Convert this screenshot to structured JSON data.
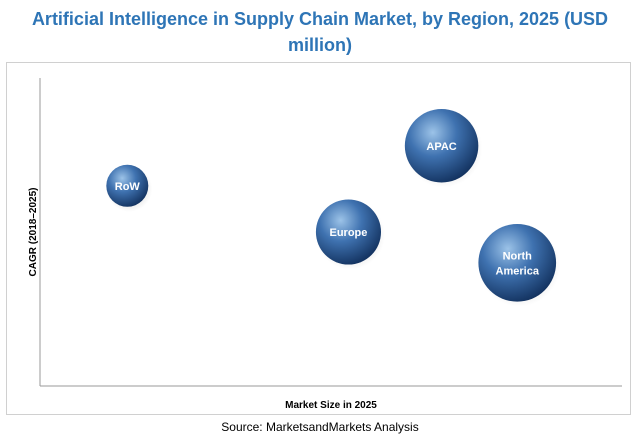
{
  "chart_data": {
    "type": "scatter",
    "title": "Artificial Intelligence in Supply Chain Market, by Region, 2025 (USD million)",
    "xlabel": "Market Size in 2025",
    "ylabel": "CAGR (2018–2025)",
    "grid": false,
    "series": [
      {
        "points": [
          {
            "label": "RoW",
            "x": 1.5,
            "y": 6.5,
            "size": 1.0
          },
          {
            "label": "Europe",
            "x": 5.3,
            "y": 5.0,
            "size": 1.55
          },
          {
            "label": "APAC",
            "x": 6.9,
            "y": 7.8,
            "size": 1.75
          },
          {
            "label": "North America",
            "x": 8.2,
            "y": 4.0,
            "size": 1.85
          }
        ]
      }
    ],
    "xlim": [
      0,
      10
    ],
    "ylim": [
      0,
      10
    ]
  },
  "footer": {
    "source": "Source: MarketsandMarkets Analysis"
  },
  "colors": {
    "title": "#2e75b6",
    "bubble_light": "#9cc3e8",
    "bubble_mid": "#3f72b0",
    "bubble_dark": "#12315e"
  }
}
